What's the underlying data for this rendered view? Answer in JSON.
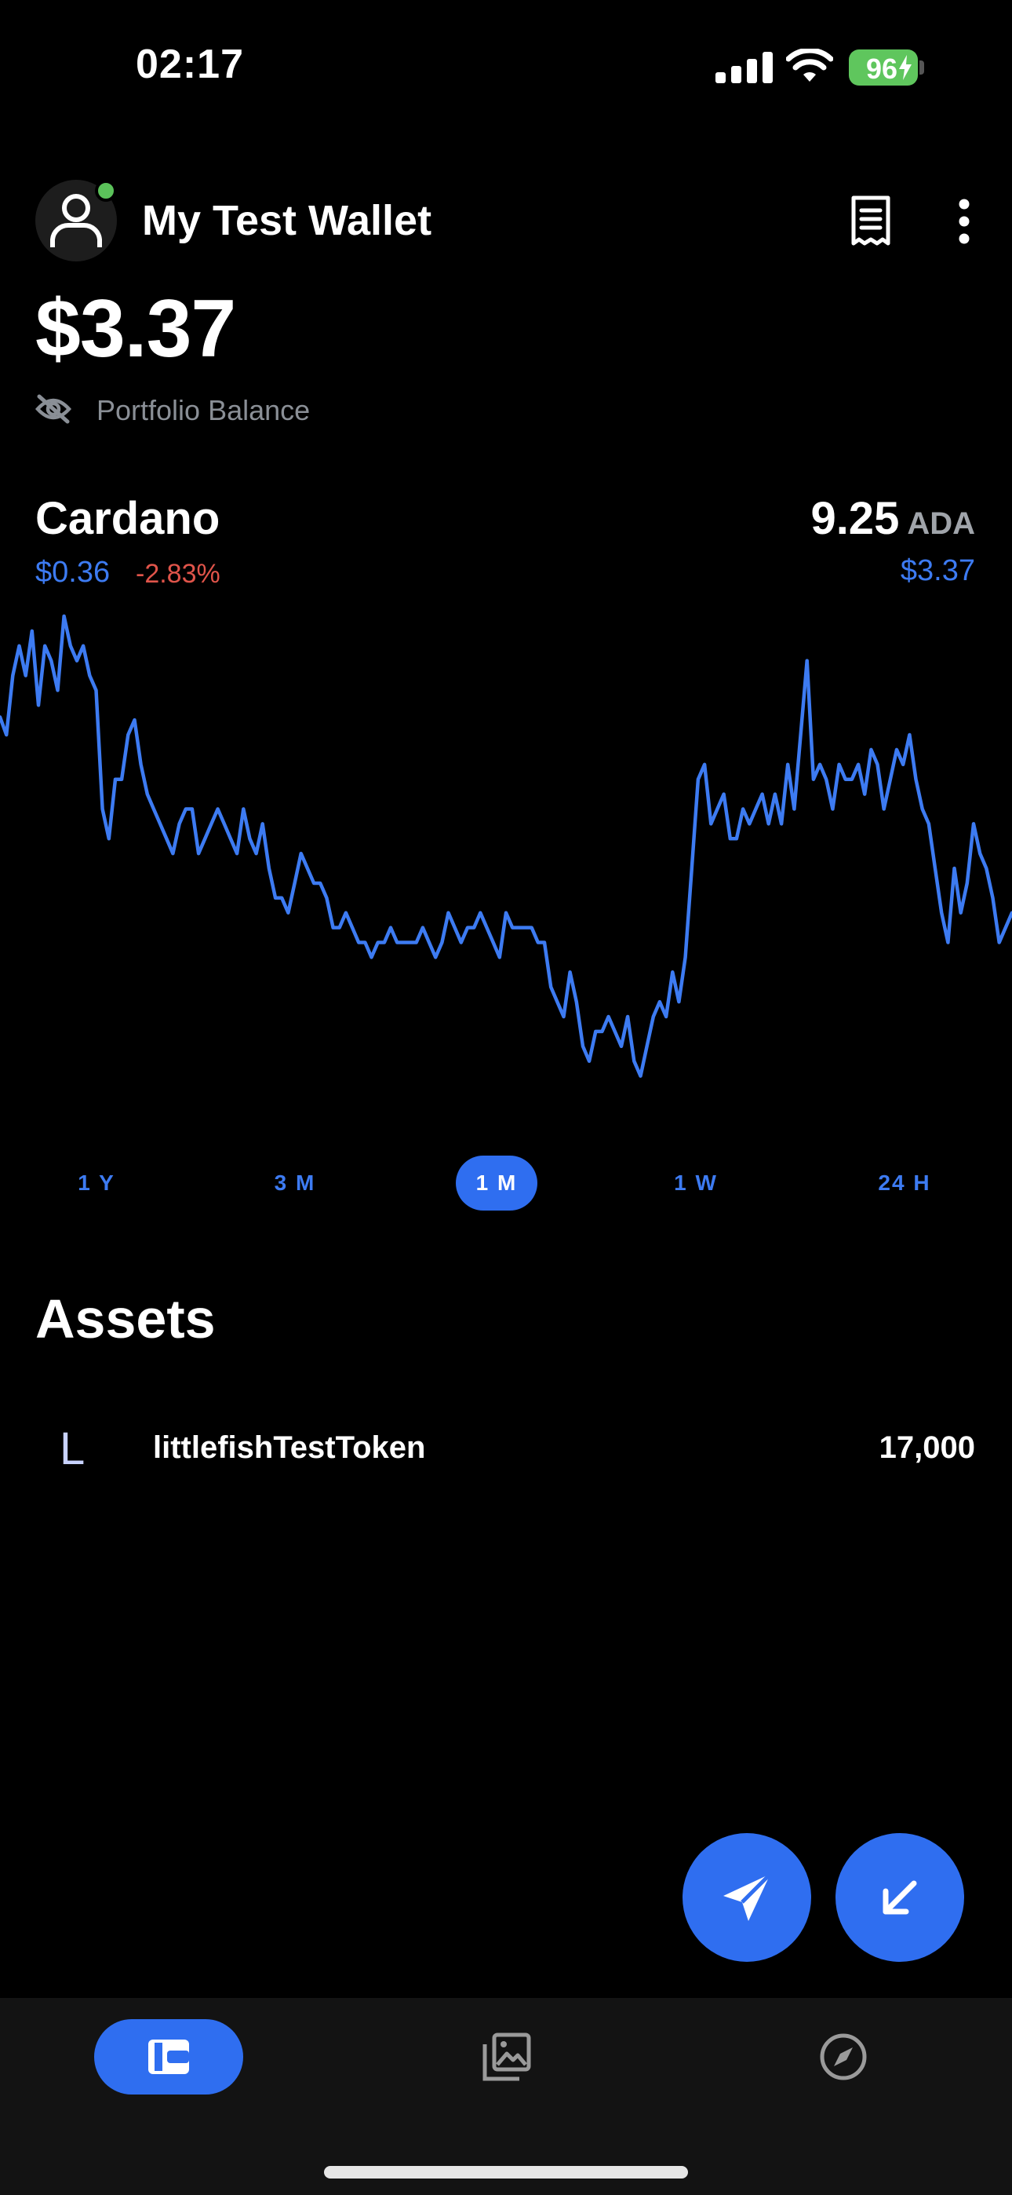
{
  "status_bar": {
    "time": "02:17",
    "battery": "96"
  },
  "header": {
    "wallet_name": "My Test Wallet"
  },
  "portfolio": {
    "balance": "$3.37",
    "label": "Portfolio Balance"
  },
  "coin": {
    "name": "Cardano",
    "price": "$0.36",
    "change": "-2.83%",
    "amount": "9.25",
    "symbol": "ADA",
    "value": "$3.37"
  },
  "timeframes": [
    {
      "label": "1 Y",
      "active": false
    },
    {
      "label": "3 M",
      "active": false
    },
    {
      "label": "1 M",
      "active": true
    },
    {
      "label": "1 W",
      "active": false
    },
    {
      "label": "24 H",
      "active": false
    }
  ],
  "assets": {
    "title": "Assets",
    "items": [
      {
        "initial": "L",
        "name": "littlefishTestToken",
        "amount": "17,000"
      }
    ]
  },
  "colors": {
    "accent": "#2f6ef0",
    "line": "#3d7bf2",
    "negative": "#e0544a",
    "online": "#5bc25a"
  },
  "icons": {
    "send": "send-icon",
    "receive": "receive-icon",
    "wallet_tab": "wallet-icon",
    "nft_tab": "gallery-icon",
    "explore_tab": "compass-icon"
  },
  "chart_data": {
    "type": "line",
    "series": [
      {
        "values": [
          0.3612,
          0.36,
          0.364,
          0.366,
          0.364,
          0.367,
          0.362,
          0.366,
          0.365,
          0.363,
          0.368,
          0.366,
          0.365,
          0.366,
          0.364,
          0.363,
          0.355,
          0.353,
          0.357,
          0.357,
          0.36,
          0.361,
          0.358,
          0.356,
          0.355,
          0.354,
          0.353,
          0.352,
          0.354,
          0.355,
          0.355,
          0.352,
          0.353,
          0.354,
          0.355,
          0.354,
          0.353,
          0.352,
          0.355,
          0.353,
          0.352,
          0.354,
          0.351,
          0.349,
          0.349,
          0.348,
          0.35,
          0.352,
          0.351,
          0.35,
          0.35,
          0.349,
          0.347,
          0.347,
          0.348,
          0.347,
          0.346,
          0.346,
          0.345,
          0.346,
          0.346,
          0.347,
          0.346,
          0.346,
          0.346,
          0.346,
          0.347,
          0.346,
          0.345,
          0.346,
          0.348,
          0.347,
          0.346,
          0.347,
          0.347,
          0.348,
          0.347,
          0.346,
          0.345,
          0.348,
          0.347,
          0.347,
          0.347,
          0.347,
          0.346,
          0.346,
          0.343,
          0.342,
          0.341,
          0.344,
          0.342,
          0.339,
          0.338,
          0.34,
          0.34,
          0.341,
          0.34,
          0.339,
          0.341,
          0.338,
          0.337,
          0.339,
          0.341,
          0.342,
          0.341,
          0.344,
          0.342,
          0.345,
          0.351,
          0.357,
          0.358,
          0.354,
          0.355,
          0.356,
          0.353,
          0.353,
          0.355,
          0.354,
          0.355,
          0.356,
          0.354,
          0.356,
          0.354,
          0.358,
          0.355,
          0.36,
          0.365,
          0.357,
          0.358,
          0.357,
          0.355,
          0.358,
          0.357,
          0.357,
          0.358,
          0.356,
          0.359,
          0.358,
          0.355,
          0.357,
          0.359,
          0.358,
          0.36,
          0.357,
          0.355,
          0.354,
          0.351,
          0.348,
          0.346,
          0.351,
          0.348,
          0.35,
          0.354,
          0.352,
          0.351,
          0.349,
          0.346,
          0.347,
          0.348
        ]
      }
    ]
  }
}
